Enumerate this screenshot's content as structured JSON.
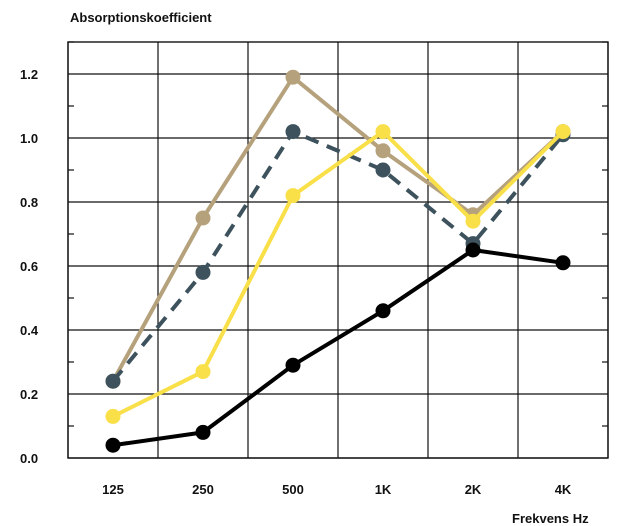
{
  "chart_data": {
    "type": "line",
    "ylabel": "Absorptionskoefficient",
    "xlabel": "Frekvens Hz",
    "categories": [
      "125",
      "250",
      "500",
      "1K",
      "2K",
      "4K"
    ],
    "ylim": [
      0,
      1.3
    ],
    "yticks": [
      "0.0",
      "0.2",
      "0.4",
      "0.6",
      "0.8",
      "1.0",
      "1.2"
    ],
    "grid": true,
    "series": [
      {
        "color": "#b5a27c",
        "dashed": false,
        "values": [
          0.24,
          0.75,
          1.19,
          0.96,
          0.76,
          1.02
        ]
      },
      {
        "color": "#3d525c",
        "dashed": true,
        "values": [
          0.24,
          0.58,
          1.02,
          0.9,
          0.67,
          1.01
        ]
      },
      {
        "color": "#f9df48",
        "dashed": false,
        "values": [
          0.13,
          0.27,
          0.82,
          1.02,
          0.74,
          1.02
        ]
      },
      {
        "color": "#000000",
        "dashed": false,
        "values": [
          0.04,
          0.08,
          0.29,
          0.46,
          0.65,
          0.61
        ]
      }
    ]
  }
}
